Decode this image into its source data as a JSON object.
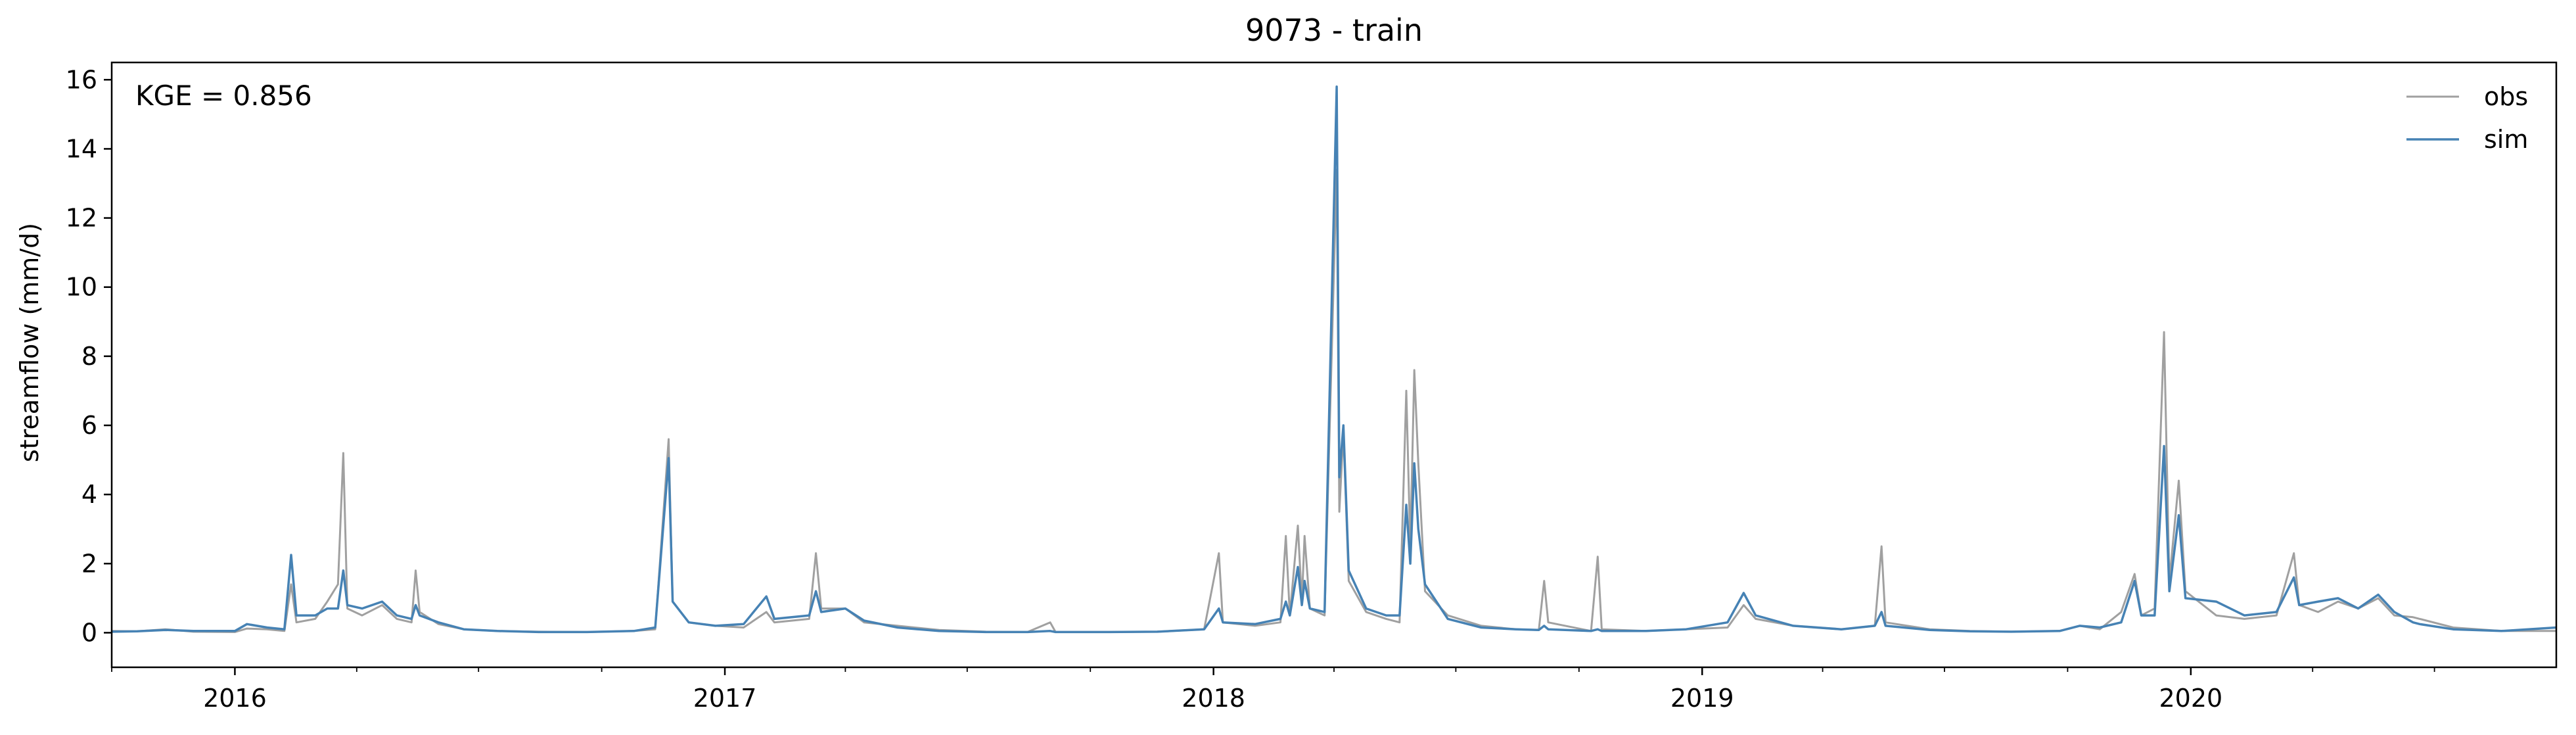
{
  "chart_data": {
    "type": "line",
    "title": "9073 - train",
    "xlabel": "",
    "ylabel": "streamflow (mm/d)",
    "annotation": "KGE = 0.856",
    "x_range": [
      "2015-10-01",
      "2020-09-30"
    ],
    "ylim": [
      -1,
      16.5
    ],
    "y_ticks": [
      0,
      2,
      4,
      6,
      8,
      10,
      12,
      14,
      16
    ],
    "y_tick_labels": [
      "0",
      "2",
      "4",
      "6",
      "8",
      "10",
      "12",
      "14",
      "16"
    ],
    "x_ticks": [
      "2016-01-01",
      "2017-01-01",
      "2018-01-01",
      "2019-01-01",
      "2020-01-01"
    ],
    "x_tick_labels": [
      "2016",
      "2017",
      "2018",
      "2019",
      "2020"
    ],
    "grid": false,
    "legend_position": "top-right",
    "series": [
      {
        "name": "obs",
        "color": "#a0a0a0",
        "points": [
          [
            "2015-10-01",
            0.05
          ],
          [
            "2015-10-20",
            0.04
          ],
          [
            "2015-11-10",
            0.1
          ],
          [
            "2015-12-01",
            0.03
          ],
          [
            "2016-01-01",
            0.02
          ],
          [
            "2016-01-10",
            0.12
          ],
          [
            "2016-01-25",
            0.1
          ],
          [
            "2016-02-07",
            0.05
          ],
          [
            "2016-02-12",
            1.4
          ],
          [
            "2016-02-16",
            0.3
          ],
          [
            "2016-03-01",
            0.4
          ],
          [
            "2016-03-10",
            0.9
          ],
          [
            "2016-03-18",
            1.4
          ],
          [
            "2016-03-22",
            5.2
          ],
          [
            "2016-03-25",
            0.7
          ],
          [
            "2016-04-05",
            0.5
          ],
          [
            "2016-04-20",
            0.8
          ],
          [
            "2016-05-01",
            0.4
          ],
          [
            "2016-05-12",
            0.3
          ],
          [
            "2016-05-15",
            1.8
          ],
          [
            "2016-05-18",
            0.6
          ],
          [
            "2016-06-01",
            0.25
          ],
          [
            "2016-06-20",
            0.1
          ],
          [
            "2016-07-15",
            0.05
          ],
          [
            "2016-08-15",
            0.03
          ],
          [
            "2016-09-20",
            0.02
          ],
          [
            "2016-10-25",
            0.05
          ],
          [
            "2016-11-10",
            0.1
          ],
          [
            "2016-11-20",
            5.6
          ],
          [
            "2016-11-23",
            0.9
          ],
          [
            "2016-12-05",
            0.3
          ],
          [
            "2016-12-25",
            0.2
          ],
          [
            "2017-01-15",
            0.15
          ],
          [
            "2017-02-01",
            0.6
          ],
          [
            "2017-02-07",
            0.3
          ],
          [
            "2017-03-05",
            0.4
          ],
          [
            "2017-03-10",
            2.3
          ],
          [
            "2017-03-14",
            0.7
          ],
          [
            "2017-04-01",
            0.7
          ],
          [
            "2017-04-15",
            0.3
          ],
          [
            "2017-05-10",
            0.2
          ],
          [
            "2017-06-10",
            0.08
          ],
          [
            "2017-07-15",
            0.03
          ],
          [
            "2017-08-15",
            0.02
          ],
          [
            "2017-09-01",
            0.3
          ],
          [
            "2017-09-05",
            0.02
          ],
          [
            "2017-10-15",
            0.02
          ],
          [
            "2017-11-20",
            0.03
          ],
          [
            "2017-12-25",
            0.1
          ],
          [
            "2018-01-05",
            2.3
          ],
          [
            "2018-01-08",
            0.3
          ],
          [
            "2018-02-01",
            0.2
          ],
          [
            "2018-02-20",
            0.3
          ],
          [
            "2018-02-24",
            2.8
          ],
          [
            "2018-02-27",
            0.5
          ],
          [
            "2018-03-05",
            3.1
          ],
          [
            "2018-03-08",
            0.9
          ],
          [
            "2018-03-10",
            2.8
          ],
          [
            "2018-03-14",
            0.7
          ],
          [
            "2018-03-25",
            0.5
          ],
          [
            "2018-04-03",
            13.4
          ],
          [
            "2018-04-05",
            3.5
          ],
          [
            "2018-04-08",
            5.8
          ],
          [
            "2018-04-12",
            1.5
          ],
          [
            "2018-04-25",
            0.6
          ],
          [
            "2018-05-10",
            0.4
          ],
          [
            "2018-05-20",
            0.3
          ],
          [
            "2018-05-25",
            7.0
          ],
          [
            "2018-05-28",
            2.5
          ],
          [
            "2018-05-31",
            7.6
          ],
          [
            "2018-06-03",
            4.9
          ],
          [
            "2018-06-08",
            1.2
          ],
          [
            "2018-06-25",
            0.5
          ],
          [
            "2018-07-20",
            0.2
          ],
          [
            "2018-08-15",
            0.1
          ],
          [
            "2018-09-01",
            0.08
          ],
          [
            "2018-09-05",
            1.5
          ],
          [
            "2018-09-08",
            0.3
          ],
          [
            "2018-10-10",
            0.05
          ],
          [
            "2018-10-15",
            2.2
          ],
          [
            "2018-10-18",
            0.1
          ],
          [
            "2018-11-20",
            0.05
          ],
          [
            "2018-12-20",
            0.1
          ],
          [
            "2019-01-20",
            0.15
          ],
          [
            "2019-02-01",
            0.8
          ],
          [
            "2019-02-10",
            0.4
          ],
          [
            "2019-03-10",
            0.2
          ],
          [
            "2019-04-15",
            0.1
          ],
          [
            "2019-05-10",
            0.2
          ],
          [
            "2019-05-15",
            2.5
          ],
          [
            "2019-05-18",
            0.3
          ],
          [
            "2019-06-20",
            0.1
          ],
          [
            "2019-07-20",
            0.05
          ],
          [
            "2019-08-20",
            0.03
          ],
          [
            "2019-09-25",
            0.05
          ],
          [
            "2019-10-10",
            0.2
          ],
          [
            "2019-10-25",
            0.1
          ],
          [
            "2019-11-10",
            0.6
          ],
          [
            "2019-11-20",
            1.7
          ],
          [
            "2019-11-25",
            0.5
          ],
          [
            "2019-12-05",
            0.7
          ],
          [
            "2019-12-12",
            8.7
          ],
          [
            "2019-12-16",
            1.5
          ],
          [
            "2019-12-23",
            4.4
          ],
          [
            "2019-12-28",
            1.2
          ],
          [
            "2020-01-20",
            0.5
          ],
          [
            "2020-02-10",
            0.4
          ],
          [
            "2020-03-05",
            0.5
          ],
          [
            "2020-03-18",
            2.3
          ],
          [
            "2020-03-22",
            0.8
          ],
          [
            "2020-04-05",
            0.6
          ],
          [
            "2020-04-20",
            0.9
          ],
          [
            "2020-05-05",
            0.7
          ],
          [
            "2020-05-20",
            1.0
          ],
          [
            "2020-06-01",
            0.5
          ],
          [
            "2020-06-15",
            0.45
          ],
          [
            "2020-06-20",
            0.4
          ],
          [
            "2020-07-15",
            0.15
          ],
          [
            "2020-08-20",
            0.05
          ],
          [
            "2020-09-30",
            0.05
          ]
        ]
      },
      {
        "name": "sim",
        "color": "#4682b4",
        "points": [
          [
            "2015-10-01",
            0.03
          ],
          [
            "2015-10-20",
            0.04
          ],
          [
            "2015-11-10",
            0.08
          ],
          [
            "2015-12-01",
            0.05
          ],
          [
            "2016-01-01",
            0.05
          ],
          [
            "2016-01-10",
            0.25
          ],
          [
            "2016-01-25",
            0.15
          ],
          [
            "2016-02-07",
            0.1
          ],
          [
            "2016-02-12",
            2.25
          ],
          [
            "2016-02-16",
            0.5
          ],
          [
            "2016-03-01",
            0.5
          ],
          [
            "2016-03-10",
            0.7
          ],
          [
            "2016-03-18",
            0.7
          ],
          [
            "2016-03-22",
            1.8
          ],
          [
            "2016-03-25",
            0.8
          ],
          [
            "2016-04-05",
            0.7
          ],
          [
            "2016-04-20",
            0.9
          ],
          [
            "2016-05-01",
            0.5
          ],
          [
            "2016-05-12",
            0.4
          ],
          [
            "2016-05-15",
            0.8
          ],
          [
            "2016-05-18",
            0.5
          ],
          [
            "2016-06-01",
            0.3
          ],
          [
            "2016-06-20",
            0.1
          ],
          [
            "2016-07-15",
            0.05
          ],
          [
            "2016-08-15",
            0.02
          ],
          [
            "2016-09-20",
            0.02
          ],
          [
            "2016-10-25",
            0.05
          ],
          [
            "2016-11-10",
            0.15
          ],
          [
            "2016-11-20",
            5.05
          ],
          [
            "2016-11-23",
            0.9
          ],
          [
            "2016-12-05",
            0.3
          ],
          [
            "2016-12-25",
            0.2
          ],
          [
            "2017-01-15",
            0.25
          ],
          [
            "2017-02-01",
            1.05
          ],
          [
            "2017-02-07",
            0.4
          ],
          [
            "2017-03-05",
            0.5
          ],
          [
            "2017-03-10",
            1.2
          ],
          [
            "2017-03-14",
            0.6
          ],
          [
            "2017-04-01",
            0.7
          ],
          [
            "2017-04-15",
            0.35
          ],
          [
            "2017-05-10",
            0.15
          ],
          [
            "2017-06-10",
            0.05
          ],
          [
            "2017-07-15",
            0.02
          ],
          [
            "2017-08-15",
            0.02
          ],
          [
            "2017-09-01",
            0.05
          ],
          [
            "2017-09-05",
            0.02
          ],
          [
            "2017-10-15",
            0.02
          ],
          [
            "2017-11-20",
            0.03
          ],
          [
            "2017-12-25",
            0.1
          ],
          [
            "2018-01-05",
            0.7
          ],
          [
            "2018-01-08",
            0.3
          ],
          [
            "2018-02-01",
            0.25
          ],
          [
            "2018-02-20",
            0.4
          ],
          [
            "2018-02-24",
            0.9
          ],
          [
            "2018-02-27",
            0.5
          ],
          [
            "2018-03-05",
            1.9
          ],
          [
            "2018-03-08",
            0.8
          ],
          [
            "2018-03-10",
            1.5
          ],
          [
            "2018-03-14",
            0.7
          ],
          [
            "2018-03-25",
            0.6
          ],
          [
            "2018-04-03",
            15.8
          ],
          [
            "2018-04-05",
            4.5
          ],
          [
            "2018-04-08",
            6.0
          ],
          [
            "2018-04-12",
            1.8
          ],
          [
            "2018-04-25",
            0.7
          ],
          [
            "2018-05-10",
            0.5
          ],
          [
            "2018-05-20",
            0.5
          ],
          [
            "2018-05-25",
            3.7
          ],
          [
            "2018-05-28",
            2.0
          ],
          [
            "2018-05-31",
            4.9
          ],
          [
            "2018-06-03",
            3.0
          ],
          [
            "2018-06-08",
            1.4
          ],
          [
            "2018-06-25",
            0.4
          ],
          [
            "2018-07-20",
            0.15
          ],
          [
            "2018-08-15",
            0.1
          ],
          [
            "2018-09-01",
            0.08
          ],
          [
            "2018-09-05",
            0.2
          ],
          [
            "2018-09-08",
            0.1
          ],
          [
            "2018-10-10",
            0.05
          ],
          [
            "2018-10-15",
            0.1
          ],
          [
            "2018-10-18",
            0.05
          ],
          [
            "2018-11-20",
            0.05
          ],
          [
            "2018-12-20",
            0.1
          ],
          [
            "2019-01-20",
            0.3
          ],
          [
            "2019-02-01",
            1.15
          ],
          [
            "2019-02-10",
            0.5
          ],
          [
            "2019-03-10",
            0.2
          ],
          [
            "2019-04-15",
            0.1
          ],
          [
            "2019-05-10",
            0.2
          ],
          [
            "2019-05-15",
            0.6
          ],
          [
            "2019-05-18",
            0.2
          ],
          [
            "2019-06-20",
            0.08
          ],
          [
            "2019-07-20",
            0.04
          ],
          [
            "2019-08-20",
            0.03
          ],
          [
            "2019-09-25",
            0.05
          ],
          [
            "2019-10-10",
            0.2
          ],
          [
            "2019-10-25",
            0.15
          ],
          [
            "2019-11-10",
            0.3
          ],
          [
            "2019-11-20",
            1.5
          ],
          [
            "2019-11-25",
            0.5
          ],
          [
            "2019-12-05",
            0.5
          ],
          [
            "2019-12-12",
            5.4
          ],
          [
            "2019-12-16",
            1.2
          ],
          [
            "2019-12-23",
            3.4
          ],
          [
            "2019-12-28",
            1.0
          ],
          [
            "2020-01-20",
            0.9
          ],
          [
            "2020-02-10",
            0.5
          ],
          [
            "2020-03-05",
            0.6
          ],
          [
            "2020-03-18",
            1.6
          ],
          [
            "2020-03-22",
            0.8
          ],
          [
            "2020-04-05",
            0.9
          ],
          [
            "2020-04-20",
            1.0
          ],
          [
            "2020-05-05",
            0.7
          ],
          [
            "2020-05-20",
            1.1
          ],
          [
            "2020-06-01",
            0.6
          ],
          [
            "2020-06-15",
            0.3
          ],
          [
            "2020-06-20",
            0.25
          ],
          [
            "2020-07-15",
            0.1
          ],
          [
            "2020-08-20",
            0.05
          ],
          [
            "2020-09-30",
            0.15
          ]
        ]
      }
    ]
  }
}
